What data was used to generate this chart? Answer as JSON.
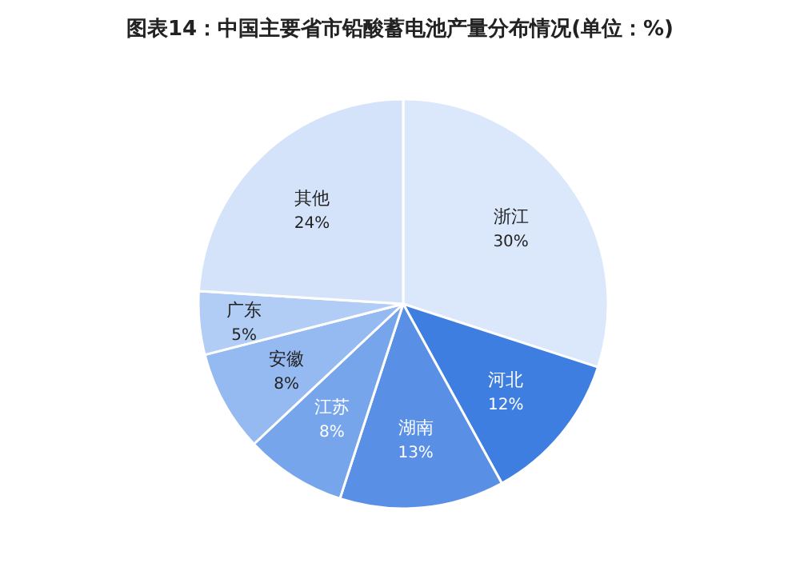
{
  "chart_data": {
    "type": "pie",
    "title": "图表14：中国主要省市铅酸蓄电池产量分布情况(单位：%)",
    "categories": [
      "浙江",
      "河北",
      "湖南",
      "江苏",
      "安徽",
      "广东",
      "其他"
    ],
    "values": [
      30,
      12,
      13,
      8,
      8,
      5,
      24
    ],
    "colors": [
      "#dbe7fa",
      "#3d7ee0",
      "#5990e6",
      "#77a5ec",
      "#95b9f1",
      "#b1cdf5",
      "#d4e3f9"
    ],
    "value_labels": [
      "30%",
      "12%",
      "13%",
      "8%",
      "8%",
      "5%",
      "24%"
    ]
  }
}
